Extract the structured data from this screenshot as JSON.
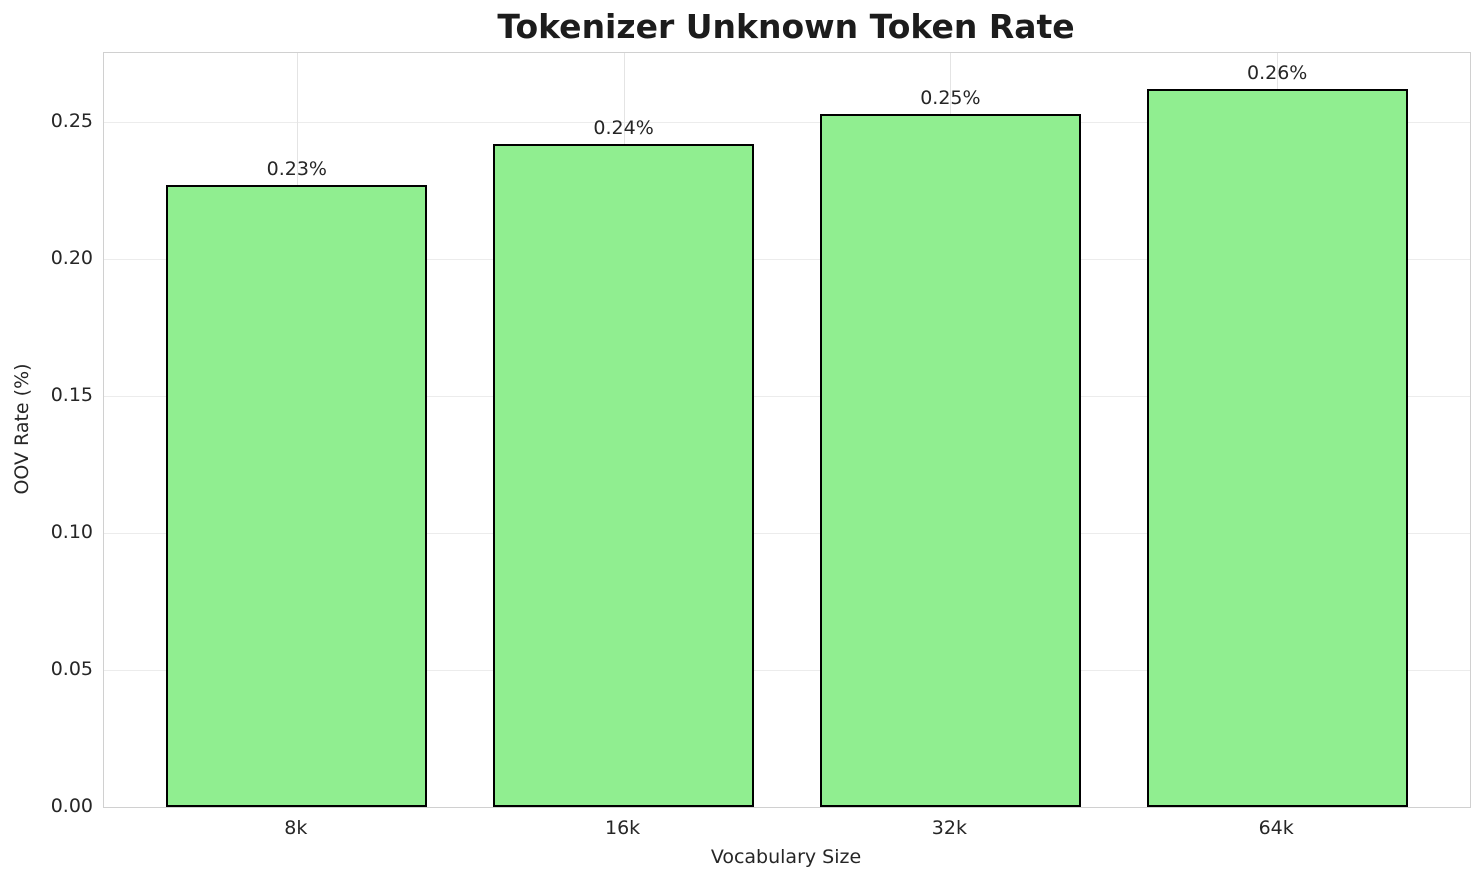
{
  "chart_data": {
    "type": "bar",
    "title": "Tokenizer Unknown Token Rate",
    "xlabel": "Vocabulary Size",
    "ylabel": "OOV Rate (%)",
    "categories": [
      "8k",
      "16k",
      "32k",
      "64k"
    ],
    "values": [
      0.227,
      0.242,
      0.253,
      0.262
    ],
    "bar_labels": [
      "0.23%",
      "0.24%",
      "0.25%",
      "0.26%"
    ],
    "ylim": [
      0,
      0.2752
    ],
    "yticks": [
      0,
      0.05,
      0.1,
      0.15,
      0.2,
      0.25
    ],
    "ytick_labels": [
      "0.00",
      "0.05",
      "0.10",
      "0.15",
      "0.20",
      "0.25"
    ],
    "grid": true,
    "legend": "none",
    "bar_width_fraction": 0.8,
    "colors": {
      "bar_fill": "#90EE90",
      "bar_edge": "#000000",
      "grid_h": "#ececec",
      "grid_v": "#e4e4e4",
      "spine": "#d0d0d0",
      "text": "#262626",
      "title_text": "#1c1c1c",
      "background": "#ffffff"
    }
  }
}
